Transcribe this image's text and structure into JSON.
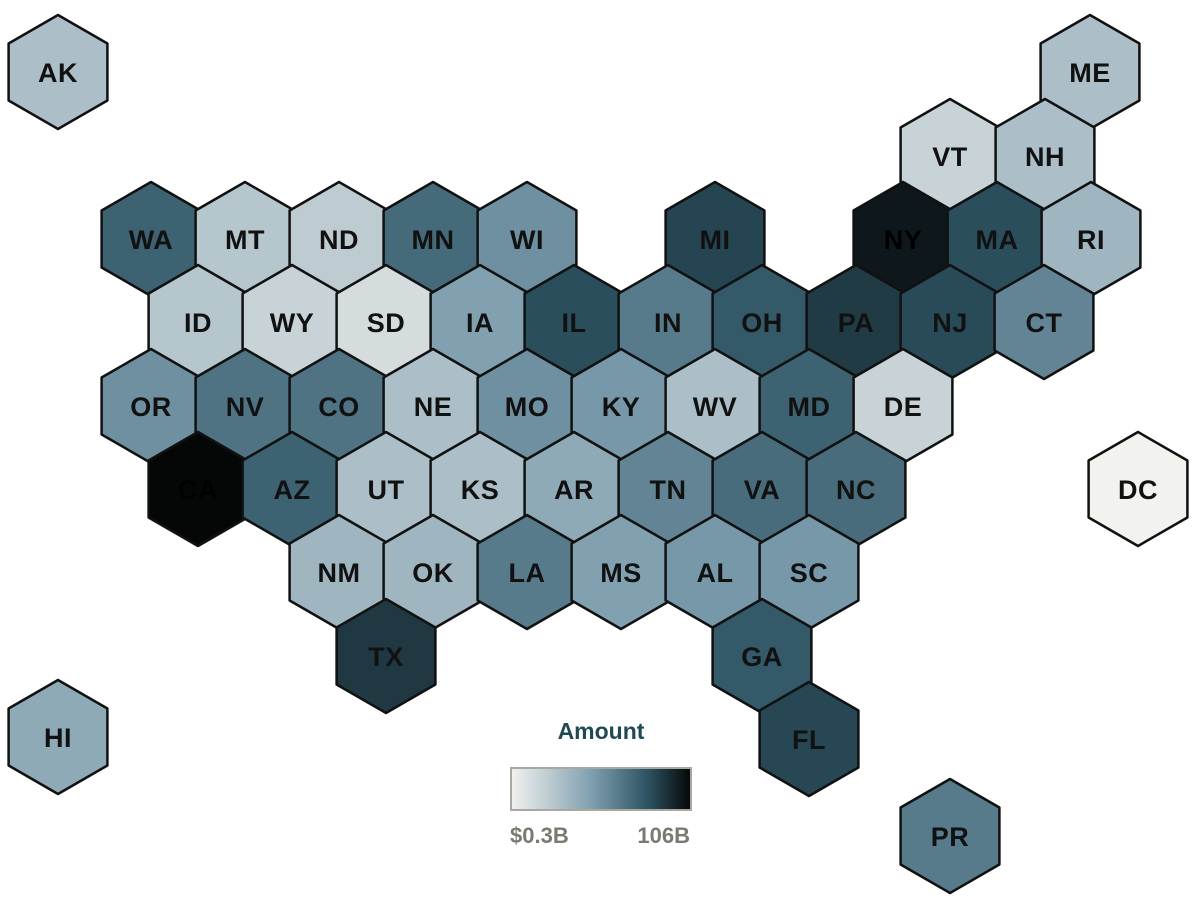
{
  "chart_data": {
    "type": "heatmap",
    "subtype": "hex-tile-map",
    "unit": "USD billions",
    "colors": [
      "#f2f2ef",
      "#7f9faf",
      "#2f5565",
      "#050707"
    ],
    "tiles": [
      {
        "state": "AK",
        "value": 1.5
      },
      {
        "state": "ME",
        "value": 1.5
      },
      {
        "state": "VT",
        "value": 0.8
      },
      {
        "state": "NH",
        "value": 1.5
      },
      {
        "state": "WA",
        "value": 18
      },
      {
        "state": "MT",
        "value": 1.2
      },
      {
        "state": "ND",
        "value": 1
      },
      {
        "state": "MN",
        "value": 15
      },
      {
        "state": "WI",
        "value": 6
      },
      {
        "state": "MI",
        "value": 33
      },
      {
        "state": "NY",
        "value": 78
      },
      {
        "state": "MA",
        "value": 28
      },
      {
        "state": "RI",
        "value": 2
      },
      {
        "state": "ID",
        "value": 1.2
      },
      {
        "state": "WY",
        "value": 0.8
      },
      {
        "state": "SD",
        "value": 0.6
      },
      {
        "state": "IA",
        "value": 4
      },
      {
        "state": "IL",
        "value": 28
      },
      {
        "state": "IN",
        "value": 10
      },
      {
        "state": "OH",
        "value": 22
      },
      {
        "state": "PA",
        "value": 40
      },
      {
        "state": "NJ",
        "value": 30
      },
      {
        "state": "CT",
        "value": 8
      },
      {
        "state": "OR",
        "value": 6
      },
      {
        "state": "NV",
        "value": 12
      },
      {
        "state": "CO",
        "value": 12
      },
      {
        "state": "NE",
        "value": 1.5
      },
      {
        "state": "MO",
        "value": 6
      },
      {
        "state": "KY",
        "value": 5
      },
      {
        "state": "WV",
        "value": 1.5
      },
      {
        "state": "MD",
        "value": 18
      },
      {
        "state": "DE",
        "value": 0.8
      },
      {
        "state": "CA",
        "value": 106
      },
      {
        "state": "AZ",
        "value": 18
      },
      {
        "state": "UT",
        "value": 1.5
      },
      {
        "state": "KS",
        "value": 1.5
      },
      {
        "state": "AR",
        "value": 3
      },
      {
        "state": "TN",
        "value": 8
      },
      {
        "state": "VA",
        "value": 14
      },
      {
        "state": "NC",
        "value": 14
      },
      {
        "state": "DC",
        "value": 0.3
      },
      {
        "state": "NM",
        "value": 2
      },
      {
        "state": "OK",
        "value": 2
      },
      {
        "state": "LA",
        "value": 10
      },
      {
        "state": "MS",
        "value": 4
      },
      {
        "state": "AL",
        "value": 5
      },
      {
        "state": "SC",
        "value": 5
      },
      {
        "state": "TX",
        "value": 42
      },
      {
        "state": "GA",
        "value": 22
      },
      {
        "state": "FL",
        "value": 32
      },
      {
        "state": "HI",
        "value": 3
      },
      {
        "state": "PR",
        "value": 10
      }
    ],
    "legend": {
      "title": "Amount",
      "min_label": "$0.3B",
      "max_label": "106B",
      "min": 0.3,
      "max": 106
    }
  }
}
